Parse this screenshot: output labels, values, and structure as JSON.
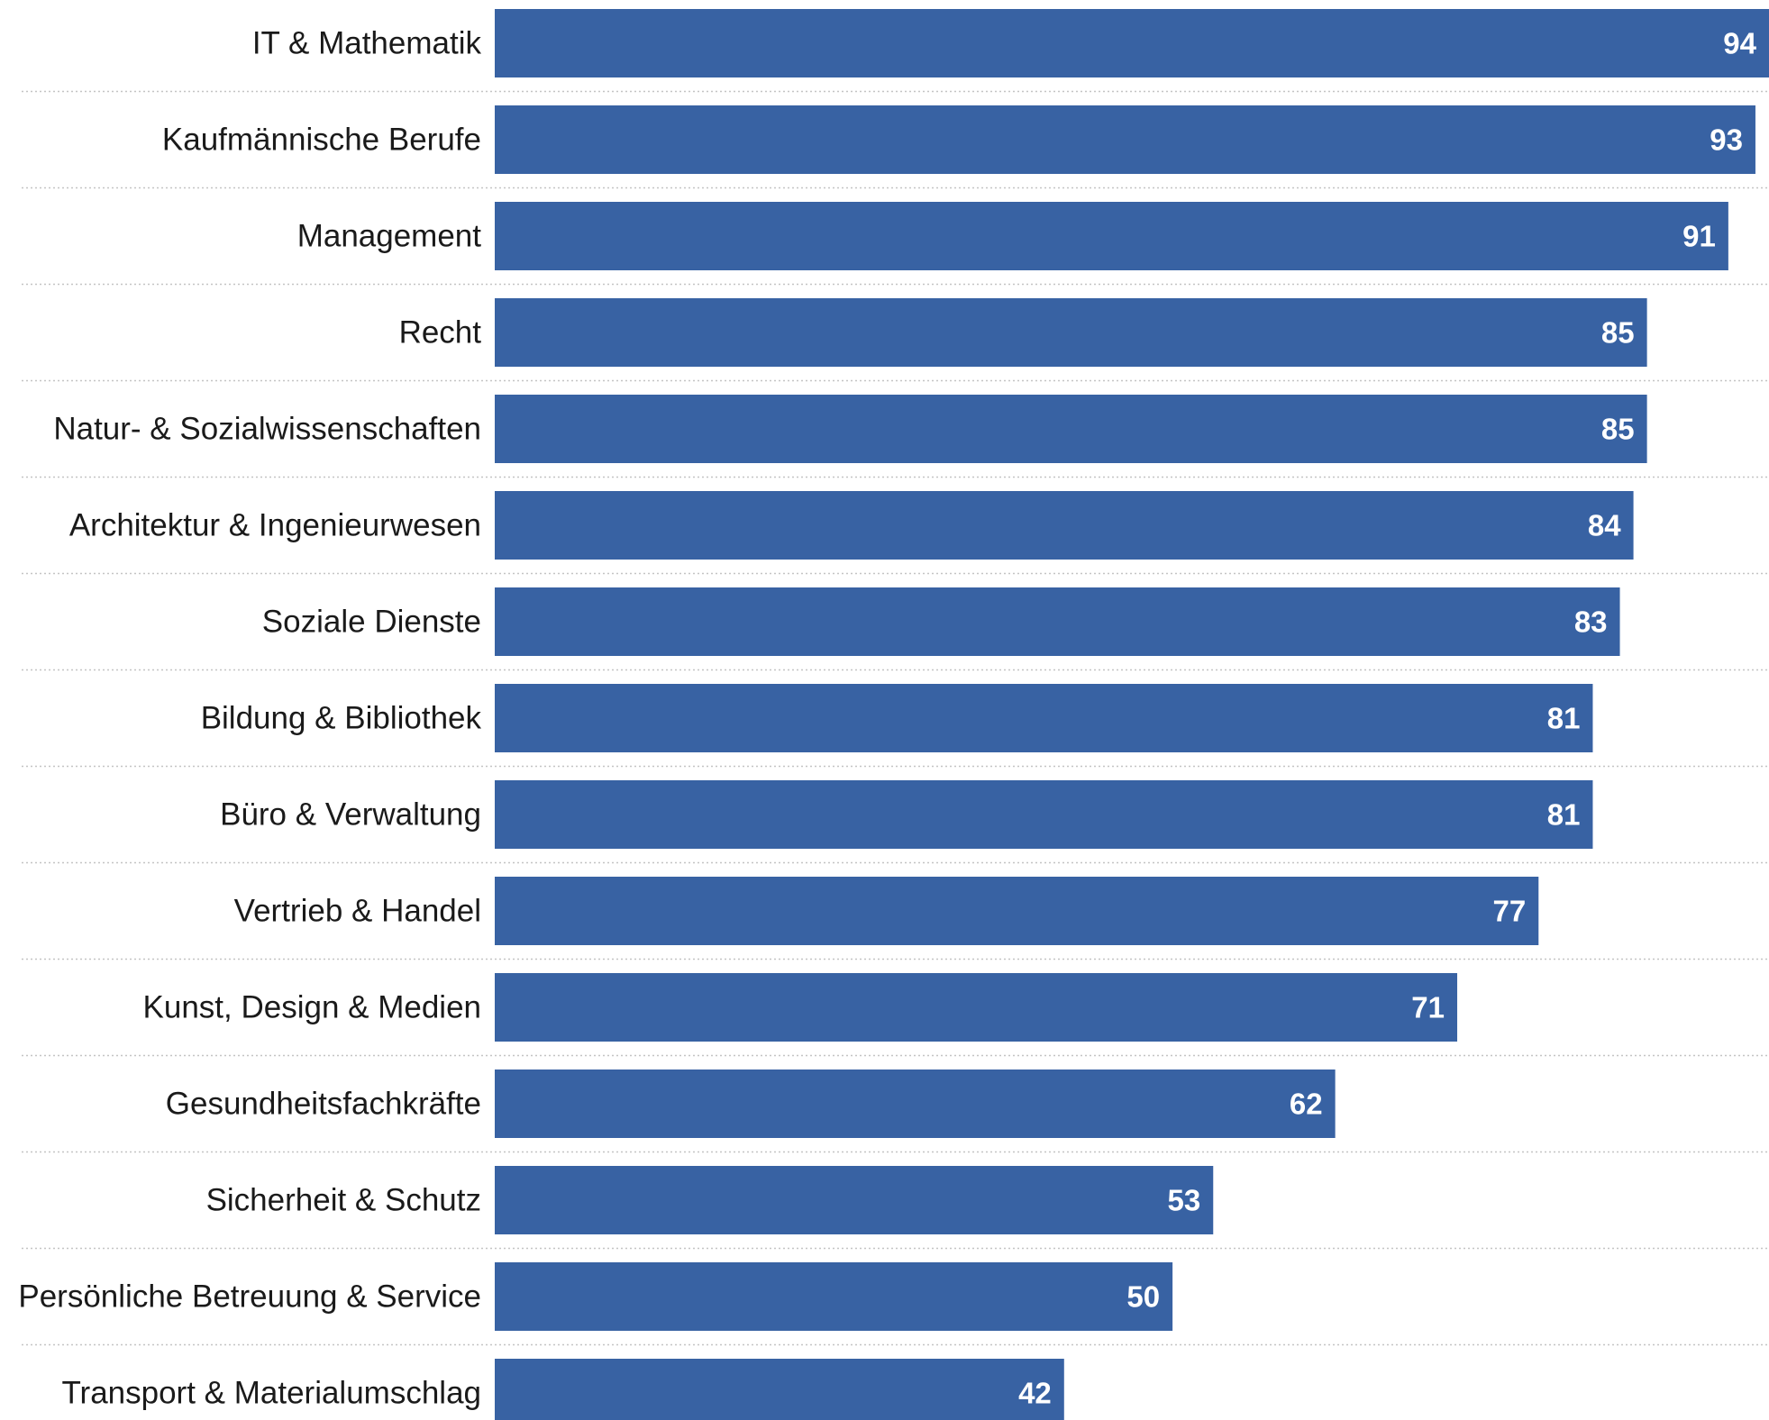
{
  "chart_data": {
    "type": "bar",
    "orientation": "horizontal",
    "bar_color": "#3862a3",
    "value_label_color": "#ffffff",
    "divider_color": "#c4c4c4",
    "xlim": [
      0,
      94
    ],
    "grid": "dotted row separators",
    "legend": "none",
    "categories": [
      "IT & Mathematik",
      "Kaufmännische Berufe",
      "Management",
      "Recht",
      "Natur- & Sozialwissenschaften",
      "Architektur & Ingenieurwesen",
      "Soziale Dienste",
      "Bildung & Bibliothek",
      "Büro & Verwaltung",
      "Vertrieb & Handel",
      "Kunst, Design & Medien",
      "Gesundheitsfachkräfte",
      "Sicherheit & Schutz",
      "Persönliche Betreuung & Service",
      "Transport & Materialumschlag"
    ],
    "values": [
      94,
      93,
      91,
      85,
      85,
      84,
      83,
      81,
      81,
      77,
      71,
      62,
      53,
      50,
      42
    ]
  }
}
